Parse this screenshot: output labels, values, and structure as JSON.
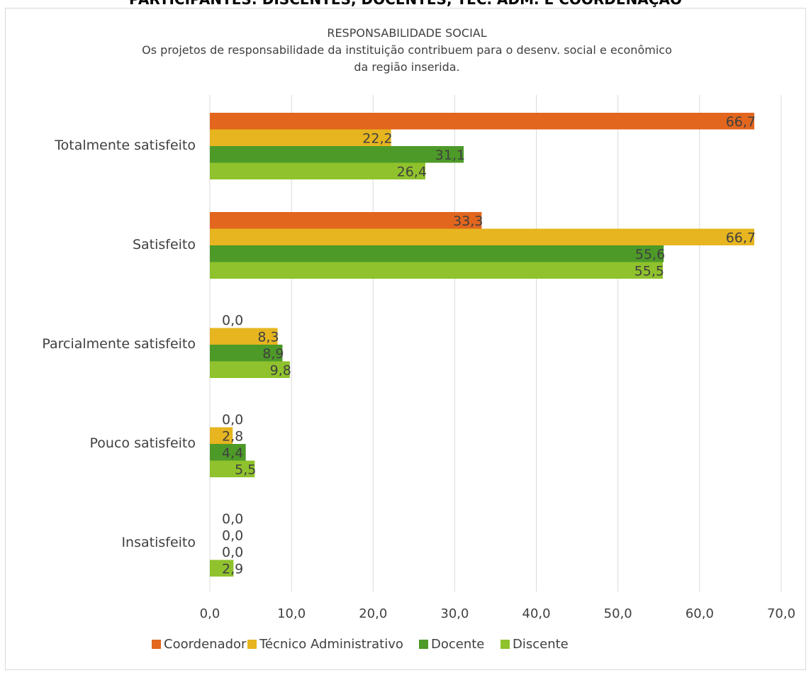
{
  "page_heading": "PARTICIPANTES: DISCENTES, DOCENTES, TEC. ADM. E COORDENAÇÃO",
  "chart_data": {
    "type": "bar",
    "orientation": "horizontal",
    "title_lines": [
      "RESPONSABILIDADE SOCIAL",
      "Os projetos de responsabilidade da instituição contribuem para o desenv. social e econômico",
      "da região inserida."
    ],
    "categories": [
      "Totalmente satisfeito",
      "Satisfeito",
      "Parcialmente satisfeito",
      "Pouco satisfeito",
      "Insatisfeito"
    ],
    "series": [
      {
        "name": "Coordenador",
        "color": "#e2661e",
        "values": [
          66.7,
          33.3,
          0.0,
          0.0,
          0.0
        ]
      },
      {
        "name": "Técnico Administrativo",
        "color": "#e6b51f",
        "values": [
          22.2,
          66.7,
          8.3,
          2.8,
          0.0
        ]
      },
      {
        "name": "Docente",
        "color": "#4d9a28",
        "values": [
          31.1,
          55.6,
          8.9,
          4.4,
          0.0
        ]
      },
      {
        "name": "Discente",
        "color": "#8fc22c",
        "values": [
          26.4,
          55.5,
          9.8,
          5.5,
          2.9
        ]
      }
    ],
    "xlim": [
      0,
      70
    ],
    "xticks": [
      "0,0",
      "10,0",
      "20,0",
      "30,0",
      "40,0",
      "50,0",
      "60,0",
      "70,0"
    ],
    "grid": "vertical",
    "legend_position": "bottom",
    "xlabel": "",
    "ylabel": ""
  }
}
